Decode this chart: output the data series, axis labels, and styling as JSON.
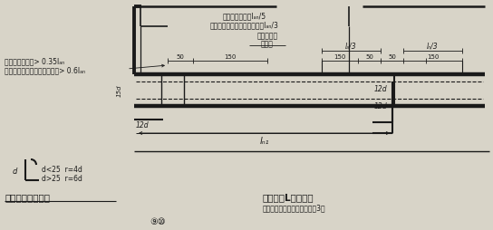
{
  "bg_color": "#d8d4c8",
  "line_color": "#1a1a1a",
  "text_color": "#1a1a1a",
  "title_right": "非框架梁L配筋构造",
  "subtitle_right": "（梁上部通长筋连接要求见注3）",
  "title_left": "纵向钢筋弯折要求",
  "label_left1": "设计接驳接时：> 0.35lₐₙ",
  "label_left2": "充分利用钢筋的抗拉强度时：> 0.6lₐₙ",
  "top_label1": "设计接驳接时：lₐₙ/5",
  "top_label2": "充分利用钢筋的抗拉强度时：lₐₙ/3",
  "label_tong": "（通长筋）",
  "label_jia": "架立筋",
  "bend_text1": "d<25  r=4d",
  "bend_text2": "d>25  r=6d",
  "label_d": "d",
  "label_15d": "15d",
  "label_12d": "12d",
  "label_ln": "lₙ₁",
  "label_la3_l": "lₐ/3",
  "label_la3_r": "lₙ/3",
  "stamp": "⑨⑩"
}
